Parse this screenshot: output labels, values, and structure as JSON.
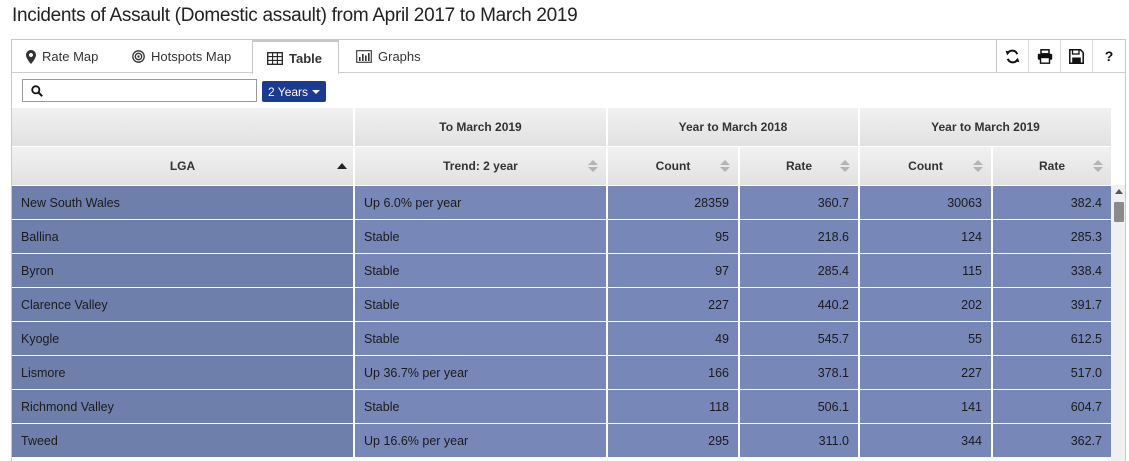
{
  "page": {
    "title": "Incidents of Assault (Domestic assault) from April 2017 to March 2019"
  },
  "tabs": [
    {
      "label": "Rate Map",
      "icon": "map-marker-icon",
      "active": false
    },
    {
      "label": "Hotspots Map",
      "icon": "target-icon",
      "active": false
    },
    {
      "label": "Table",
      "icon": "table-icon",
      "active": true
    },
    {
      "label": "Graphs",
      "icon": "bar-chart-icon",
      "active": false
    }
  ],
  "tools": {
    "refresh": "refresh-icon",
    "print": "print-icon",
    "save": "save-icon",
    "help_label": "?"
  },
  "search": {
    "value": "",
    "placeholder": ""
  },
  "period_select": {
    "label": "2 Years"
  },
  "table": {
    "group_headers": [
      "To March 2019",
      "Year to March 2018",
      "Year to March 2019"
    ],
    "columns": [
      "LGA",
      "Trend: 2 year",
      "Count",
      "Rate",
      "Count",
      "Rate"
    ],
    "sort": {
      "column": "LGA",
      "direction": "ascending"
    },
    "rows": [
      {
        "lga": "New South Wales",
        "trend": "Up 6.0% per year",
        "count_2018": "28359",
        "rate_2018": "360.7",
        "count_2019": "30063",
        "rate_2019": "382.4"
      },
      {
        "lga": "Ballina",
        "trend": "Stable",
        "count_2018": "95",
        "rate_2018": "218.6",
        "count_2019": "124",
        "rate_2019": "285.3"
      },
      {
        "lga": "Byron",
        "trend": "Stable",
        "count_2018": "97",
        "rate_2018": "285.4",
        "count_2019": "115",
        "rate_2019": "338.4"
      },
      {
        "lga": "Clarence Valley",
        "trend": "Stable",
        "count_2018": "227",
        "rate_2018": "440.2",
        "count_2019": "202",
        "rate_2019": "391.7"
      },
      {
        "lga": "Kyogle",
        "trend": "Stable",
        "count_2018": "49",
        "rate_2018": "545.7",
        "count_2019": "55",
        "rate_2019": "612.5"
      },
      {
        "lga": "Lismore",
        "trend": "Up 36.7% per year",
        "count_2018": "166",
        "rate_2018": "378.1",
        "count_2019": "227",
        "rate_2019": "517.0"
      },
      {
        "lga": "Richmond Valley",
        "trend": "Stable",
        "count_2018": "118",
        "rate_2018": "506.1",
        "count_2019": "141",
        "rate_2019": "604.7"
      },
      {
        "lga": "Tweed",
        "trend": "Up 16.6% per year",
        "count_2018": "295",
        "rate_2018": "311.0",
        "count_2019": "344",
        "rate_2019": "362.7"
      }
    ]
  },
  "colors": {
    "row_dark": "#6f7fac",
    "row_light": "#7787b7",
    "accent": "#1a3a96"
  }
}
